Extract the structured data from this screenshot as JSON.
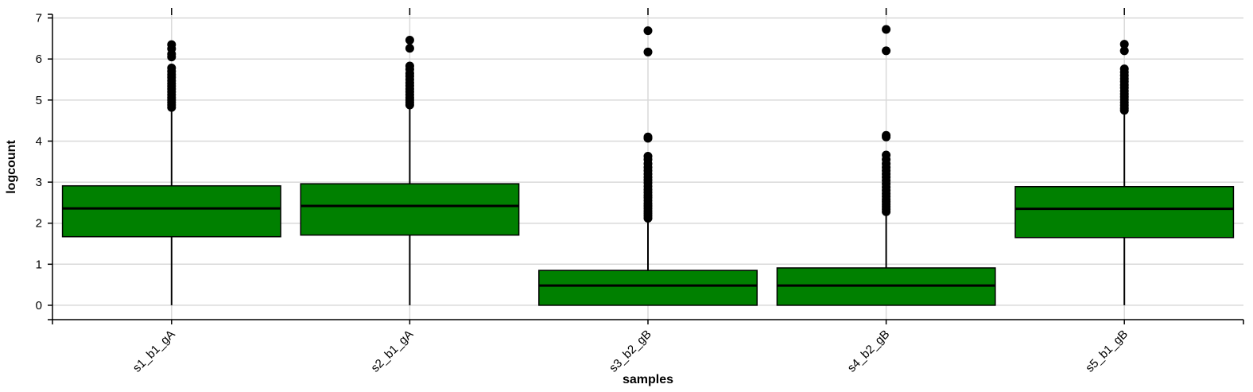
{
  "chart_data": {
    "type": "boxplot",
    "xlabel": "samples",
    "ylabel": "logcount",
    "ylim": [
      -0.35,
      7.05
    ],
    "yticks": [
      0,
      1,
      2,
      3,
      4,
      5,
      6,
      7
    ],
    "grid": true,
    "colors": {
      "box_fill": "#008000",
      "stroke": "#000000",
      "grid": "#d9d9d9"
    },
    "categories": [
      "s1_b1_gA",
      "s2_b1_gA",
      "s3_b2_gB",
      "s4_b2_gB",
      "s5_b1_gB"
    ],
    "boxes": [
      {
        "name": "s1_b1_gA",
        "min": 0,
        "q1": 1.67,
        "median": 2.36,
        "q3": 2.91,
        "whisker_high": 4.8,
        "outliers": [
          4.82,
          4.88,
          4.94,
          5.0,
          5.06,
          5.13,
          5.2,
          5.27,
          5.34,
          5.4,
          5.47,
          5.55,
          5.62,
          5.7,
          5.78,
          6.05,
          6.12,
          6.25,
          6.35
        ]
      },
      {
        "name": "s2_b1_gA",
        "min": 0,
        "q1": 1.71,
        "median": 2.42,
        "q3": 2.96,
        "whisker_high": 4.85,
        "outliers": [
          4.88,
          4.94,
          5.0,
          5.06,
          5.13,
          5.2,
          5.27,
          5.35,
          5.42,
          5.5,
          5.58,
          5.65,
          5.75,
          5.83,
          6.26,
          6.46
        ]
      },
      {
        "name": "s3_b2_gB",
        "min": 0,
        "q1": 0,
        "median": 0.48,
        "q3": 0.85,
        "whisker_high": 2.1,
        "outliers": [
          2.12,
          2.18,
          2.24,
          2.3,
          2.36,
          2.42,
          2.48,
          2.55,
          2.62,
          2.68,
          2.75,
          2.82,
          2.9,
          2.98,
          3.05,
          3.12,
          3.2,
          3.28,
          3.36,
          3.45,
          3.55,
          3.63,
          4.07,
          4.1,
          6.17,
          6.69
        ]
      },
      {
        "name": "s4_b2_gB",
        "min": 0,
        "q1": 0,
        "median": 0.48,
        "q3": 0.91,
        "whisker_high": 2.25,
        "outliers": [
          2.28,
          2.34,
          2.4,
          2.46,
          2.52,
          2.58,
          2.65,
          2.72,
          2.8,
          2.88,
          2.96,
          3.04,
          3.12,
          3.2,
          3.28,
          3.36,
          3.45,
          3.55,
          3.66,
          4.1,
          4.14,
          6.2,
          6.72
        ]
      },
      {
        "name": "s5_b1_gB",
        "min": 0,
        "q1": 1.65,
        "median": 2.35,
        "q3": 2.89,
        "whisker_high": 4.72,
        "outliers": [
          4.75,
          4.8,
          4.87,
          4.94,
          5.01,
          5.08,
          5.15,
          5.22,
          5.3,
          5.37,
          5.45,
          5.52,
          5.6,
          5.68,
          5.76,
          6.2,
          6.36
        ]
      }
    ]
  }
}
